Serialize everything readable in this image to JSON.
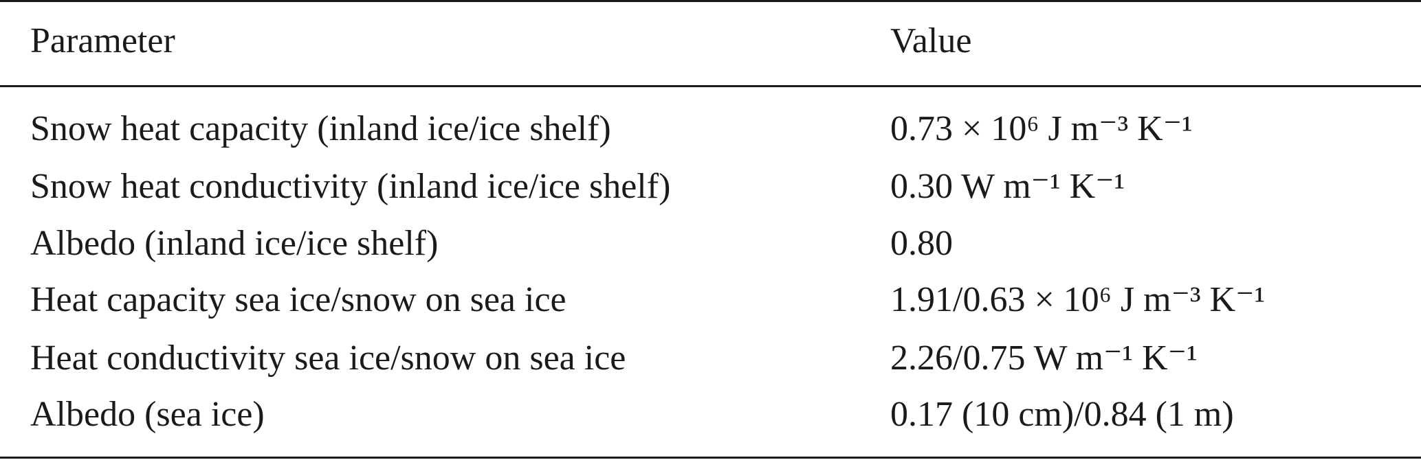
{
  "table": {
    "headers": {
      "parameter": "Parameter",
      "value": "Value"
    },
    "rows": [
      {
        "parameter": "Snow heat capacity (inland ice/ice shelf)",
        "value": "0.73 × 10⁶ J m⁻³ K⁻¹"
      },
      {
        "parameter": "Snow heat conductivity (inland ice/ice shelf)",
        "value": "0.30 W m⁻¹ K⁻¹"
      },
      {
        "parameter": "Albedo (inland ice/ice shelf)",
        "value": "0.80"
      },
      {
        "parameter": "Heat capacity sea ice/snow on sea ice",
        "value": "1.91/0.63 × 10⁶ J m⁻³ K⁻¹"
      },
      {
        "parameter": "Heat conductivity sea ice/snow on sea ice",
        "value": "2.26/0.75 W m⁻¹ K⁻¹"
      },
      {
        "parameter": "Albedo (sea ice)",
        "value": "0.17 (10 cm)/0.84 (1 m)"
      }
    ]
  }
}
